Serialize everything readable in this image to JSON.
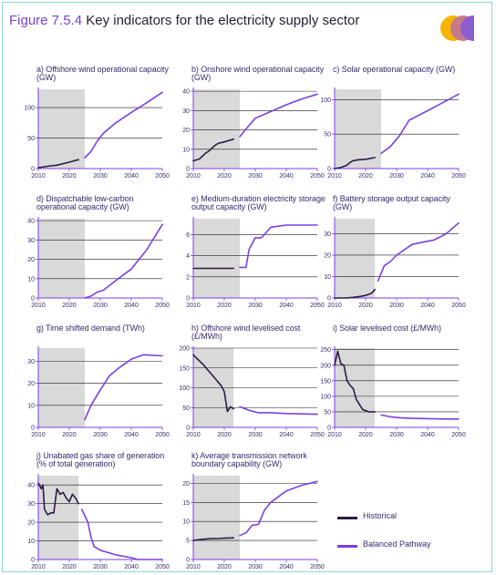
{
  "figure": {
    "number": "Figure 7.5.4",
    "title": "Key indicators for the electricity supply sector"
  },
  "colors": {
    "historical": "#2d1b46",
    "pathway": "#7b3fe4",
    "shade": "#d9d9d9",
    "logo": [
      "#f5b400",
      "#c87a8a",
      "#8c5fd0"
    ]
  },
  "legend": [
    {
      "label": "Historical",
      "color": "#2d1b46"
    },
    {
      "label": "Balanced Pathway",
      "color": "#7b3fe4"
    }
  ],
  "chart_data": [
    {
      "type": "line",
      "title": "a) Offshore wind operational capacity (GW)",
      "xlim": [
        2010,
        2050
      ],
      "ylim": [
        0,
        130
      ],
      "yticks": [
        0,
        50,
        100
      ],
      "xticks": [
        2010,
        2020,
        2030,
        2040,
        2050
      ],
      "shaded_x": [
        2010,
        2025
      ],
      "grid": "horizontal",
      "series": [
        {
          "name": "Historical",
          "points": [
            [
              2010,
              1.3
            ],
            [
              2012,
              3
            ],
            [
              2014,
              4.5
            ],
            [
              2016,
              5.5
            ],
            [
              2018,
              8
            ],
            [
              2020,
              10.5
            ],
            [
              2022,
              13.5
            ],
            [
              2023,
              14.5
            ]
          ]
        },
        {
          "name": "Balanced Pathway",
          "points": [
            [
              2025,
              18
            ],
            [
              2027,
              28
            ],
            [
              2029,
              45
            ],
            [
              2031,
              58
            ],
            [
              2035,
              75
            ],
            [
              2040,
              92
            ],
            [
              2045,
              108
            ],
            [
              2050,
              125
            ]
          ]
        }
      ]
    },
    {
      "type": "line",
      "title": "b) Onshore wind operational capacity (GW)",
      "xlim": [
        2010,
        2050
      ],
      "ylim": [
        0,
        41
      ],
      "yticks": [
        0,
        10,
        20,
        30,
        40
      ],
      "xticks": [
        2010,
        2020,
        2030,
        2040,
        2050
      ],
      "shaded_x": [
        2010,
        2025
      ],
      "grid": "horizontal",
      "series": [
        {
          "name": "Historical",
          "points": [
            [
              2010,
              4
            ],
            [
              2012,
              5
            ],
            [
              2014,
              8
            ],
            [
              2015,
              9
            ],
            [
              2016,
              10.5
            ],
            [
              2017,
              12
            ],
            [
              2018,
              13
            ],
            [
              2020,
              13.8
            ],
            [
              2023,
              15.2
            ]
          ]
        },
        {
          "name": "Balanced Pathway",
          "points": [
            [
              2025,
              16.5
            ],
            [
              2027,
              20.5
            ],
            [
              2030,
              26
            ],
            [
              2035,
              29.5
            ],
            [
              2040,
              33
            ],
            [
              2045,
              36
            ],
            [
              2050,
              38.5
            ]
          ]
        }
      ]
    },
    {
      "type": "line",
      "title": "c) Solar operational capacity (GW)",
      "xlim": [
        2010,
        2050
      ],
      "ylim": [
        0,
        115
      ],
      "yticks": [
        0,
        50,
        100
      ],
      "xticks": [
        2010,
        2020,
        2030,
        2040,
        2050
      ],
      "shaded_x": [
        2010,
        2025
      ],
      "grid": "horizontal",
      "series": [
        {
          "name": "Historical",
          "points": [
            [
              2010,
              0.1
            ],
            [
              2012,
              1.5
            ],
            [
              2014,
              5
            ],
            [
              2015,
              9
            ],
            [
              2016,
              11.5
            ],
            [
              2018,
              13
            ],
            [
              2020,
              13.5
            ],
            [
              2023,
              16
            ]
          ]
        },
        {
          "name": "Balanced Pathway",
          "points": [
            [
              2025,
              22
            ],
            [
              2028,
              32
            ],
            [
              2031,
              48
            ],
            [
              2034,
              70
            ],
            [
              2040,
              84
            ],
            [
              2045,
              96
            ],
            [
              2050,
              108
            ]
          ]
        }
      ]
    },
    {
      "type": "line",
      "title": "d) Dispatchable low-carbon operational capacity (GW)",
      "xlim": [
        2010,
        2050
      ],
      "ylim": [
        0,
        41
      ],
      "yticks": [
        0,
        10,
        20,
        30,
        40
      ],
      "xticks": [
        2010,
        2020,
        2030,
        2040,
        2050
      ],
      "shaded_x": [
        2010,
        2025
      ],
      "grid": "horizontal",
      "series": [
        {
          "name": "Balanced Pathway",
          "points": [
            [
              2025,
              0
            ],
            [
              2027,
              1
            ],
            [
              2029,
              3
            ],
            [
              2031,
              4
            ],
            [
              2035,
              9
            ],
            [
              2040,
              15
            ],
            [
              2045,
              25
            ],
            [
              2050,
              38
            ]
          ]
        }
      ]
    },
    {
      "type": "line",
      "title": "e) Medium-duration electricity storage output capacity (GW)",
      "xlim": [
        2010,
        2050
      ],
      "ylim": [
        0,
        7.5
      ],
      "yticks": [
        0,
        2,
        4,
        6
      ],
      "xticks": [
        2010,
        2020,
        2030,
        2040,
        2050
      ],
      "shaded_x": [
        2010,
        2025
      ],
      "grid": "horizontal",
      "series": [
        {
          "name": "Historical",
          "points": [
            [
              2010,
              2.8
            ],
            [
              2023,
              2.8
            ]
          ]
        },
        {
          "name": "Balanced Pathway",
          "points": [
            [
              2025,
              2.9
            ],
            [
              2027,
              2.9
            ],
            [
              2028,
              4.6
            ],
            [
              2030,
              5.7
            ],
            [
              2032,
              5.7
            ],
            [
              2035,
              6.7
            ],
            [
              2040,
              6.9
            ],
            [
              2050,
              6.9
            ]
          ]
        }
      ]
    },
    {
      "type": "line",
      "title": "f) Battery storage output capacity (GW)",
      "xlim": [
        2010,
        2050
      ],
      "ylim": [
        0,
        37
      ],
      "yticks": [
        0,
        10,
        20,
        30
      ],
      "xticks": [
        2010,
        2020,
        2030,
        2040,
        2050
      ],
      "shaded_x": [
        2010,
        2023
      ],
      "grid": "horizontal",
      "series": [
        {
          "name": "Historical",
          "points": [
            [
              2010,
              0
            ],
            [
              2012,
              0
            ],
            [
              2014,
              0
            ],
            [
              2016,
              0.3
            ],
            [
              2018,
              0.7
            ],
            [
              2020,
              1.2
            ],
            [
              2022,
              2.3
            ],
            [
              2023,
              4
            ]
          ]
        },
        {
          "name": "Balanced Pathway",
          "points": [
            [
              2024,
              8
            ],
            [
              2026,
              15
            ],
            [
              2028,
              17
            ],
            [
              2030,
              20
            ],
            [
              2035,
              25
            ],
            [
              2040,
              26.5
            ],
            [
              2042,
              27
            ],
            [
              2046,
              30
            ],
            [
              2050,
              35
            ]
          ]
        }
      ]
    },
    {
      "type": "line",
      "title": "g) Time shifted demand (TWh)",
      "xlim": [
        2010,
        2050
      ],
      "ylim": [
        0,
        36
      ],
      "yticks": [
        0,
        10,
        20,
        30
      ],
      "xticks": [
        2010,
        2020,
        2030,
        2040,
        2050
      ],
      "shaded_x": [
        2010,
        2025
      ],
      "grid": "horizontal",
      "series": [
        {
          "name": "Balanced Pathway",
          "points": [
            [
              2025,
              3.5
            ],
            [
              2027,
              10
            ],
            [
              2030,
              17
            ],
            [
              2033,
              23.5
            ],
            [
              2036,
              27
            ],
            [
              2040,
              31
            ],
            [
              2044,
              33
            ],
            [
              2050,
              32.5
            ]
          ]
        }
      ]
    },
    {
      "type": "line",
      "title": "h) Offshore wind levelised cost (£/MWh)",
      "xlim": [
        2010,
        2050
      ],
      "ylim": [
        0,
        200
      ],
      "yticks": [
        0,
        50,
        100,
        150,
        200
      ],
      "xticks": [
        2010,
        2020,
        2030,
        2040,
        2050
      ],
      "shaded_x": [
        2010,
        2023
      ],
      "grid": "horizontal",
      "series": [
        {
          "name": "Historical",
          "points": [
            [
              2010,
              183
            ],
            [
              2013,
              160
            ],
            [
              2016,
              133
            ],
            [
              2019,
              105
            ],
            [
              2020,
              90
            ],
            [
              2021,
              40
            ],
            [
              2022,
              52
            ],
            [
              2023,
              47
            ]
          ]
        },
        {
          "name": "Balanced Pathway",
          "points": [
            [
              2025,
              52
            ],
            [
              2028,
              43
            ],
            [
              2031,
              37
            ],
            [
              2035,
              37
            ],
            [
              2040,
              35
            ],
            [
              2045,
              34
            ],
            [
              2050,
              33
            ]
          ]
        }
      ]
    },
    {
      "type": "line",
      "title": "i) Solar levelised cost (£/MWh)",
      "xlim": [
        2010,
        2050
      ],
      "ylim": [
        0,
        255
      ],
      "yticks": [
        0,
        50,
        100,
        150,
        200,
        250
      ],
      "xticks": [
        2010,
        2020,
        2030,
        2040,
        2050
      ],
      "shaded_x": [
        2010,
        2023
      ],
      "grid": "horizontal",
      "series": [
        {
          "name": "Historical",
          "points": [
            [
              2010,
              200
            ],
            [
              2011,
              245
            ],
            [
              2012,
              205
            ],
            [
              2013,
              200
            ],
            [
              2014,
              150
            ],
            [
              2015,
              135
            ],
            [
              2016,
              125
            ],
            [
              2017,
              90
            ],
            [
              2019,
              58
            ],
            [
              2021,
              50
            ],
            [
              2023,
              50
            ]
          ]
        },
        {
          "name": "Balanced Pathway",
          "points": [
            [
              2025,
              40
            ],
            [
              2028,
              34
            ],
            [
              2031,
              31
            ],
            [
              2035,
              29
            ],
            [
              2040,
              28
            ],
            [
              2045,
              27
            ],
            [
              2050,
              27
            ]
          ]
        }
      ]
    },
    {
      "type": "line",
      "title": "j) Unabated gas share of generation (% of total generation)",
      "xlim": [
        2010,
        2050
      ],
      "ylim": [
        0,
        45
      ],
      "yticks": [
        0,
        10,
        20,
        30,
        40
      ],
      "xticks": [
        2010,
        2020,
        2030,
        2040,
        2050
      ],
      "shaded_x": [
        2010,
        2023
      ],
      "grid": "horizontal",
      "series": [
        {
          "name": "Historical",
          "points": [
            [
              2010,
              41
            ],
            [
              2011,
              38
            ],
            [
              2011.5,
              40
            ],
            [
              2012,
              27
            ],
            [
              2013,
              24
            ],
            [
              2014,
              25
            ],
            [
              2015,
              25
            ],
            [
              2016,
              38
            ],
            [
              2017,
              35
            ],
            [
              2018,
              36
            ],
            [
              2019,
              33
            ],
            [
              2020,
              31
            ],
            [
              2021,
              35
            ],
            [
              2022,
              33
            ],
            [
              2023,
              30
            ]
          ]
        },
        {
          "name": "Balanced Pathway",
          "points": [
            [
              2024,
              27
            ],
            [
              2026,
              20
            ],
            [
              2027,
              12
            ],
            [
              2028,
              7
            ],
            [
              2030,
              5
            ],
            [
              2035,
              2.5
            ],
            [
              2040,
              1
            ],
            [
              2042,
              0
            ],
            [
              2050,
              0
            ]
          ]
        }
      ]
    },
    {
      "type": "line",
      "title": "k) Average transmission network boundary capability (GW)",
      "xlim": [
        2010,
        2050
      ],
      "ylim": [
        0,
        22
      ],
      "yticks": [
        0,
        5,
        10,
        15,
        20
      ],
      "xticks": [
        2010,
        2020,
        2030,
        2040,
        2050
      ],
      "shaded_x": [
        2010,
        2025
      ],
      "grid": "horizontal",
      "series": [
        {
          "name": "Historical",
          "points": [
            [
              2010,
              5
            ],
            [
              2013,
              5.3
            ],
            [
              2016,
              5.5
            ],
            [
              2018,
              5.5
            ],
            [
              2020,
              5.6
            ],
            [
              2023,
              5.7
            ]
          ]
        },
        {
          "name": "Balanced Pathway",
          "points": [
            [
              2025,
              6.3
            ],
            [
              2027,
              7
            ],
            [
              2029,
              9
            ],
            [
              2031,
              9.2
            ],
            [
              2033,
              13
            ],
            [
              2035,
              15
            ],
            [
              2040,
              18
            ],
            [
              2045,
              19.5
            ],
            [
              2050,
              20.5
            ]
          ]
        }
      ]
    }
  ]
}
